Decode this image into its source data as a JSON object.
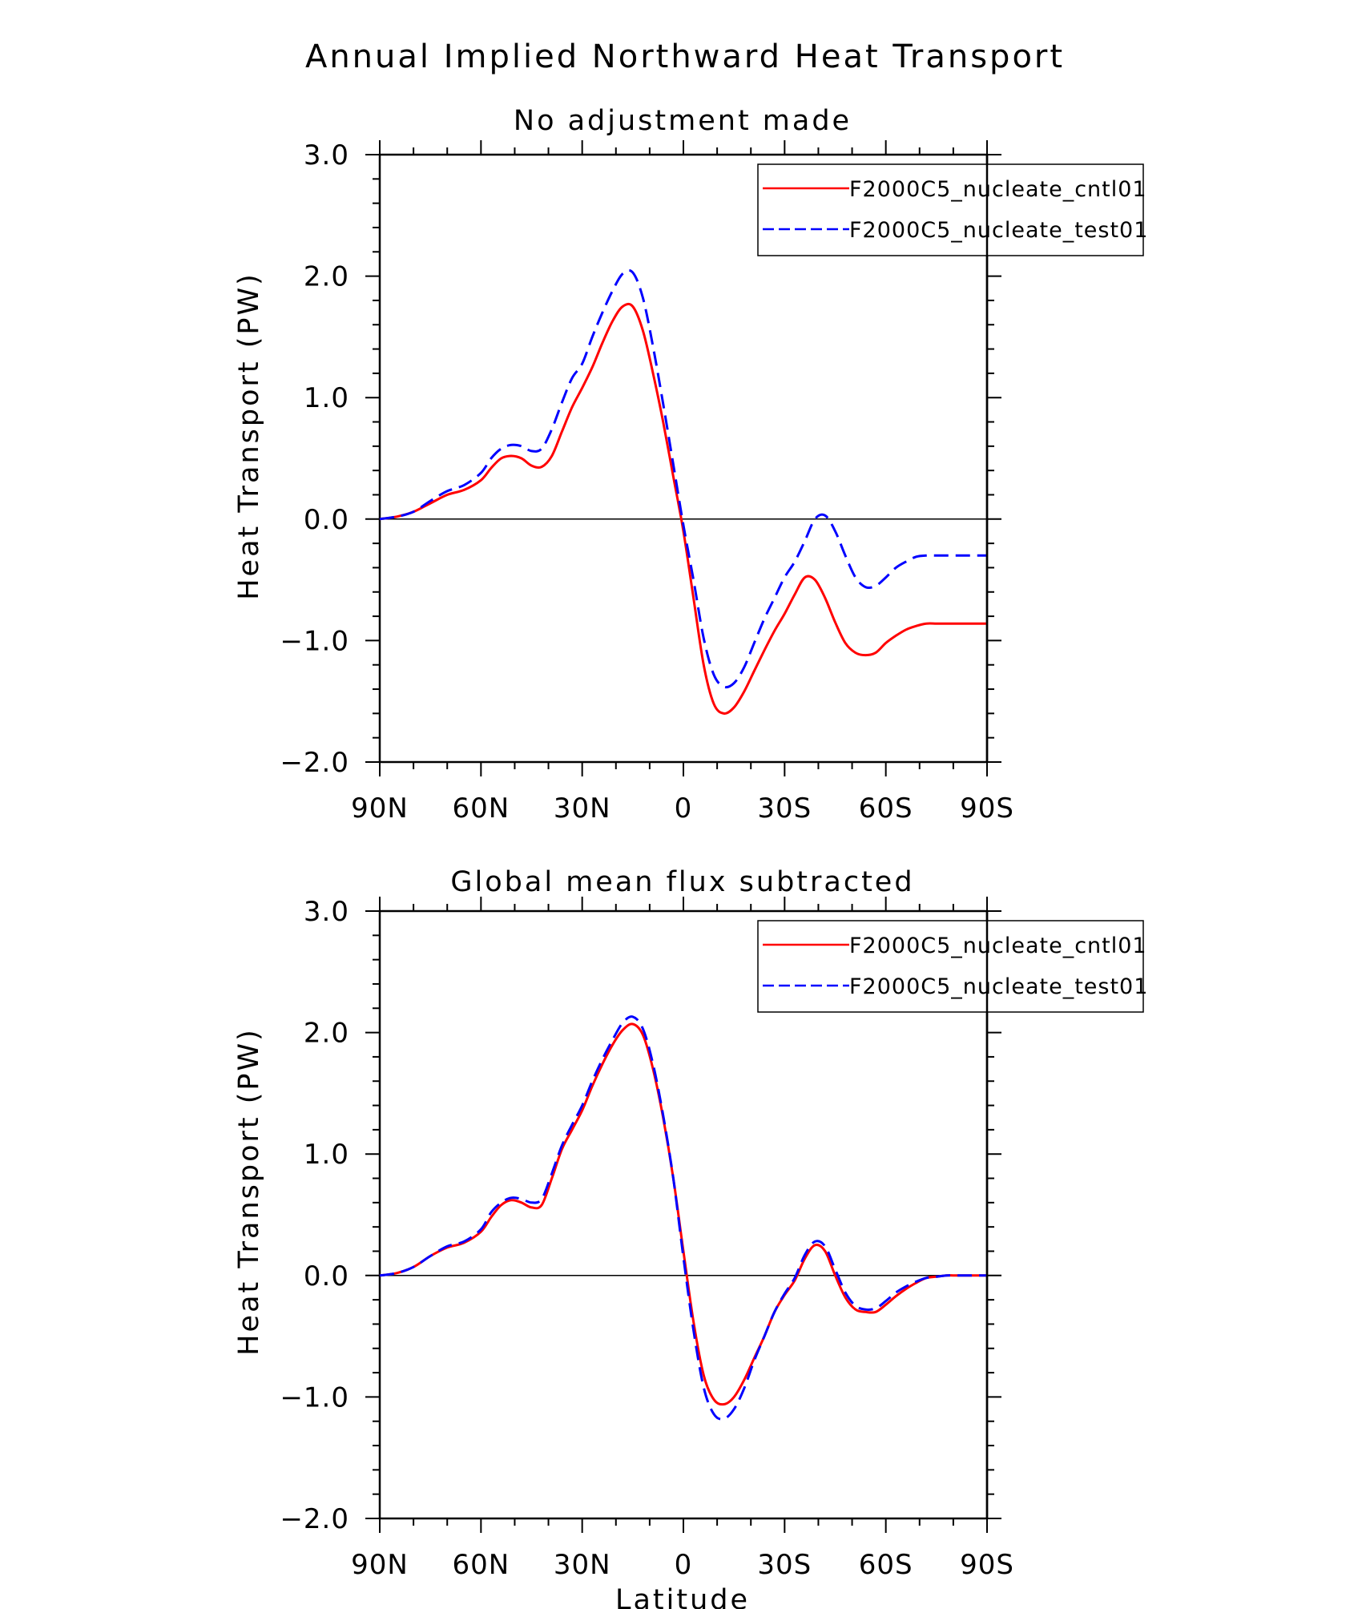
{
  "figure": {
    "title": "Annual Implied Northward Heat Transport"
  },
  "chart_data": [
    {
      "type": "line",
      "title": "No adjustment made",
      "xlabel": "",
      "ylabel": "Heat Transport (PW)",
      "xlim": [
        -90,
        90
      ],
      "ylim": [
        -2.0,
        3.0
      ],
      "x_ticks": [
        -90,
        -60,
        -30,
        0,
        30,
        60,
        90
      ],
      "x_tick_labels": [
        "90N",
        "60N",
        "30N",
        "0",
        "30S",
        "60S",
        "90S"
      ],
      "y_ticks": [
        -2.0,
        -1.0,
        0.0,
        1.0,
        2.0,
        3.0
      ],
      "y_tick_labels": [
        "−2.0",
        "−1.0",
        "0.0",
        "1.0",
        "2.0",
        "3.0"
      ],
      "zero_line": true,
      "legend_position": "top-right",
      "series": [
        {
          "name": "F2000C5_nucleate_cntl01",
          "color": "#ff0000",
          "dash": "solid",
          "x": [
            -90,
            -85,
            -80,
            -75,
            -70,
            -65,
            -60,
            -57,
            -54,
            -51,
            -48,
            -45,
            -42,
            -39,
            -36,
            -33,
            -30,
            -27,
            -24,
            -21,
            -18,
            -15,
            -12,
            -9,
            -6,
            -3,
            0,
            3,
            6,
            9,
            12,
            15,
            18,
            21,
            24,
            27,
            30,
            33,
            36,
            39,
            42,
            45,
            48,
            51,
            54,
            57,
            60,
            63,
            66,
            69,
            72,
            75,
            78,
            81,
            84,
            87,
            90
          ],
          "y": [
            0,
            0.02,
            0.06,
            0.13,
            0.2,
            0.24,
            0.32,
            0.42,
            0.5,
            0.52,
            0.5,
            0.44,
            0.43,
            0.52,
            0.72,
            0.92,
            1.08,
            1.25,
            1.45,
            1.63,
            1.75,
            1.75,
            1.55,
            1.2,
            0.8,
            0.35,
            -0.1,
            -0.65,
            -1.2,
            -1.52,
            -1.6,
            -1.55,
            -1.42,
            -1.25,
            -1.08,
            -0.92,
            -0.78,
            -0.62,
            -0.48,
            -0.5,
            -0.65,
            -0.85,
            -1.02,
            -1.1,
            -1.12,
            -1.1,
            -1.02,
            -0.96,
            -0.91,
            -0.88,
            -0.86,
            -0.86,
            -0.86,
            -0.86,
            -0.86,
            -0.86,
            -0.86
          ]
        },
        {
          "name": "F2000C5_nucleate_test01",
          "color": "#0000ff",
          "dash": "dashed",
          "x": [
            -90,
            -85,
            -80,
            -75,
            -70,
            -65,
            -60,
            -57,
            -54,
            -51,
            -48,
            -45,
            -42,
            -39,
            -36,
            -33,
            -30,
            -27,
            -24,
            -21,
            -18,
            -15,
            -12,
            -9,
            -6,
            -3,
            0,
            3,
            6,
            9,
            12,
            15,
            18,
            21,
            24,
            27,
            30,
            33,
            36,
            39,
            42,
            45,
            48,
            51,
            54,
            57,
            60,
            63,
            66,
            69,
            72,
            75,
            78,
            81,
            84,
            87,
            90
          ],
          "y": [
            0,
            0.02,
            0.06,
            0.15,
            0.23,
            0.28,
            0.38,
            0.5,
            0.58,
            0.61,
            0.6,
            0.56,
            0.58,
            0.74,
            0.96,
            1.16,
            1.28,
            1.5,
            1.7,
            1.88,
            2.02,
            2.03,
            1.82,
            1.42,
            0.95,
            0.45,
            -0.05,
            -0.5,
            -0.98,
            -1.28,
            -1.38,
            -1.35,
            -1.22,
            -1.02,
            -0.82,
            -0.65,
            -0.48,
            -0.35,
            -0.18,
            0,
            0.03,
            -0.1,
            -0.3,
            -0.48,
            -0.56,
            -0.55,
            -0.48,
            -0.4,
            -0.35,
            -0.31,
            -0.3,
            -0.3,
            -0.3,
            -0.3,
            -0.3,
            -0.3,
            -0.3
          ]
        }
      ]
    },
    {
      "type": "line",
      "title": "Global mean flux subtracted",
      "xlabel": "Latitude",
      "ylabel": "Heat Transport (PW)",
      "xlim": [
        -90,
        90
      ],
      "ylim": [
        -2.0,
        3.0
      ],
      "x_ticks": [
        -90,
        -60,
        -30,
        0,
        30,
        60,
        90
      ],
      "x_tick_labels": [
        "90N",
        "60N",
        "30N",
        "0",
        "30S",
        "60S",
        "90S"
      ],
      "y_ticks": [
        -2.0,
        -1.0,
        0.0,
        1.0,
        2.0,
        3.0
      ],
      "y_tick_labels": [
        "−2.0",
        "−1.0",
        "0.0",
        "1.0",
        "2.0",
        "3.0"
      ],
      "zero_line": true,
      "legend_position": "top-right",
      "series": [
        {
          "name": "F2000C5_nucleate_cntl01",
          "color": "#ff0000",
          "dash": "solid",
          "x": [
            -90,
            -85,
            -80,
            -75,
            -70,
            -65,
            -60,
            -57,
            -54,
            -51,
            -48,
            -45,
            -42,
            -39,
            -36,
            -33,
            -30,
            -27,
            -24,
            -21,
            -18,
            -15,
            -12,
            -9,
            -6,
            -3,
            0,
            3,
            6,
            9,
            12,
            15,
            18,
            21,
            24,
            27,
            30,
            33,
            36,
            39,
            42,
            45,
            48,
            51,
            54,
            57,
            60,
            63,
            66,
            69,
            72,
            75,
            78,
            81,
            84,
            87,
            90
          ],
          "y": [
            0,
            0.02,
            0.07,
            0.16,
            0.23,
            0.27,
            0.36,
            0.48,
            0.58,
            0.62,
            0.6,
            0.56,
            0.58,
            0.8,
            1.04,
            1.2,
            1.36,
            1.56,
            1.74,
            1.9,
            2.02,
            2.07,
            1.98,
            1.7,
            1.3,
            0.8,
            0.2,
            -0.38,
            -0.82,
            -1.02,
            -1.06,
            -1.0,
            -0.86,
            -0.68,
            -0.5,
            -0.3,
            -0.16,
            -0.04,
            0.14,
            0.25,
            0.2,
            0.0,
            -0.18,
            -0.28,
            -0.3,
            -0.3,
            -0.24,
            -0.17,
            -0.11,
            -0.06,
            -0.02,
            -0.01,
            0,
            0,
            0,
            0,
            0
          ]
        },
        {
          "name": "F2000C5_nucleate_test01",
          "color": "#0000ff",
          "dash": "dashed",
          "x": [
            -90,
            -85,
            -80,
            -75,
            -70,
            -65,
            -60,
            -57,
            -54,
            -51,
            -48,
            -45,
            -42,
            -39,
            -36,
            -33,
            -30,
            -27,
            -24,
            -21,
            -18,
            -15,
            -12,
            -9,
            -6,
            -3,
            0,
            3,
            6,
            9,
            12,
            15,
            18,
            21,
            24,
            27,
            30,
            33,
            36,
            39,
            42,
            45,
            48,
            51,
            54,
            57,
            60,
            63,
            66,
            69,
            72,
            75,
            78,
            81,
            84,
            87,
            90
          ],
          "y": [
            0,
            0.02,
            0.07,
            0.16,
            0.24,
            0.28,
            0.38,
            0.52,
            0.6,
            0.64,
            0.63,
            0.6,
            0.63,
            0.84,
            1.07,
            1.24,
            1.4,
            1.6,
            1.78,
            1.94,
            2.08,
            2.13,
            2.03,
            1.74,
            1.32,
            0.8,
            0.15,
            -0.45,
            -0.92,
            -1.14,
            -1.18,
            -1.1,
            -0.93,
            -0.7,
            -0.5,
            -0.3,
            -0.15,
            -0.02,
            0.17,
            0.28,
            0.24,
            0.05,
            -0.14,
            -0.25,
            -0.28,
            -0.27,
            -0.21,
            -0.14,
            -0.09,
            -0.05,
            -0.02,
            -0.01,
            0,
            0,
            0,
            0,
            0
          ]
        }
      ]
    }
  ]
}
